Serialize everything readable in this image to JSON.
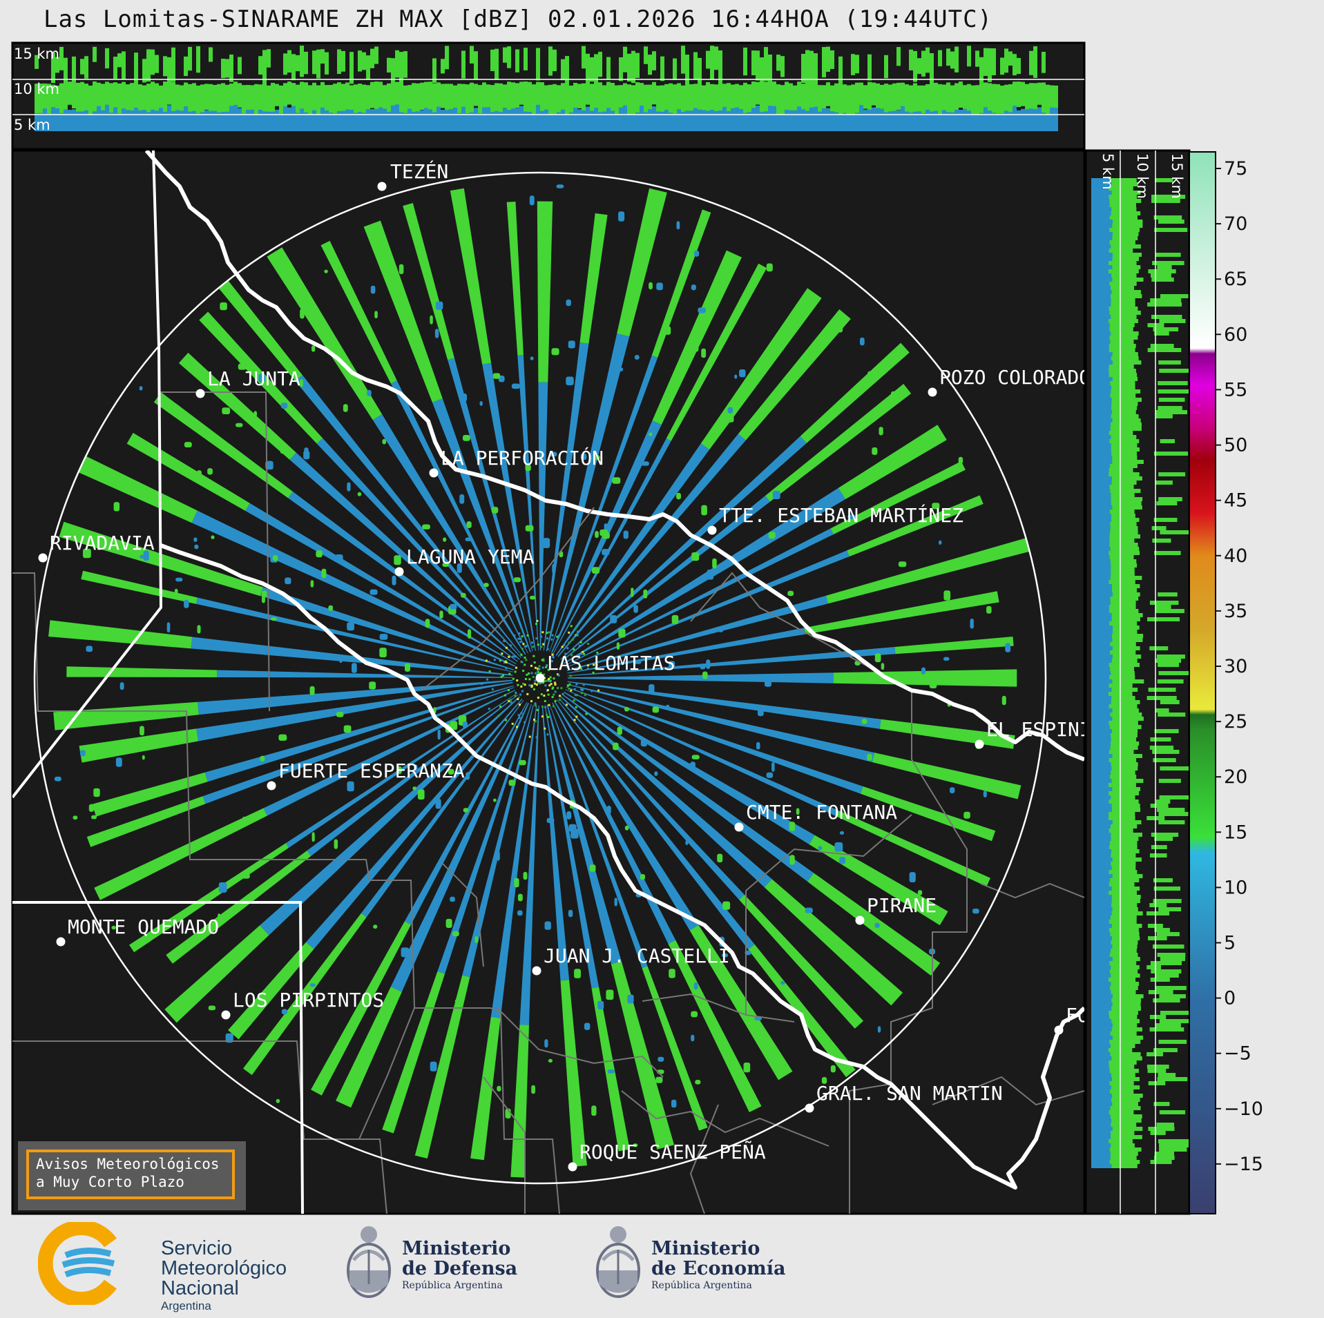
{
  "title": "Las Lomitas-SINARAME ZH MAX [dBZ] 02.01.2026 16:44HOA (19:44UTC)",
  "altitude_labels_top": [
    "15 km",
    "10 km",
    "5 km"
  ],
  "altitude_labels_side": [
    "5 km",
    "10 km",
    "15 km"
  ],
  "colorbar": {
    "ticks": [
      "75",
      "70",
      "65",
      "60",
      "55",
      "50",
      "45",
      "40",
      "35",
      "30",
      "25",
      "20",
      "15",
      "10",
      "5",
      "0",
      "−5",
      "−10",
      "−15"
    ],
    "stops": [
      "#3a3f6e",
      "#3c4f86",
      "#365f95",
      "#2f6fa5",
      "#2a7fb6",
      "#279ccf",
      "#2fc7e8",
      "#3ae039",
      "#2aa12a",
      "#206f1f",
      "#eaea3b",
      "#d4b72a",
      "#e08a1c",
      "#d8131c",
      "#b0000c",
      "#c8007a",
      "#e000e0",
      "#9c009c",
      "#ffffff",
      "#d8f5e6",
      "#8fe2b8"
    ]
  },
  "cities": [
    {
      "name": "TEZÉN"
    },
    {
      "name": "LA JUNTA"
    },
    {
      "name": "POZO COLORADO"
    },
    {
      "name": "LA PERFORACIÓN"
    },
    {
      "name": "TTE. ESTEBAN MARTÍNEZ"
    },
    {
      "name": "RIVADAVIA"
    },
    {
      "name": "LAGUNA YEMA"
    },
    {
      "name": "LAS LOMITAS"
    },
    {
      "name": "EL ESPINILLO"
    },
    {
      "name": "FUERTE ESPERANZA"
    },
    {
      "name": "CMTE. FONTANA"
    },
    {
      "name": "PIRANE"
    },
    {
      "name": "MONTE QUEMADO"
    },
    {
      "name": "JUAN J. CASTELLI"
    },
    {
      "name": "LOS PIRPINTOS"
    },
    {
      "name": "GRAL. SAN MARTIN"
    },
    {
      "name": "ROQUE SAENZ PEÑA"
    },
    {
      "name": "FORMOSA"
    }
  ],
  "aviso": {
    "line1": "Avisos Meteorológicos",
    "line2": "a Muy Corto Plazo"
  },
  "logos": {
    "smn": {
      "line1": "Servicio",
      "line2": "Meteorológico",
      "line3": "Nacional",
      "line4": "Argentina"
    },
    "defensa": {
      "line1": "Ministerio",
      "line2": "de Defensa",
      "line3": "República Argentina"
    },
    "economia": {
      "line1": "Ministerio",
      "line2": "de Economía",
      "line3": "República Argentina"
    }
  }
}
